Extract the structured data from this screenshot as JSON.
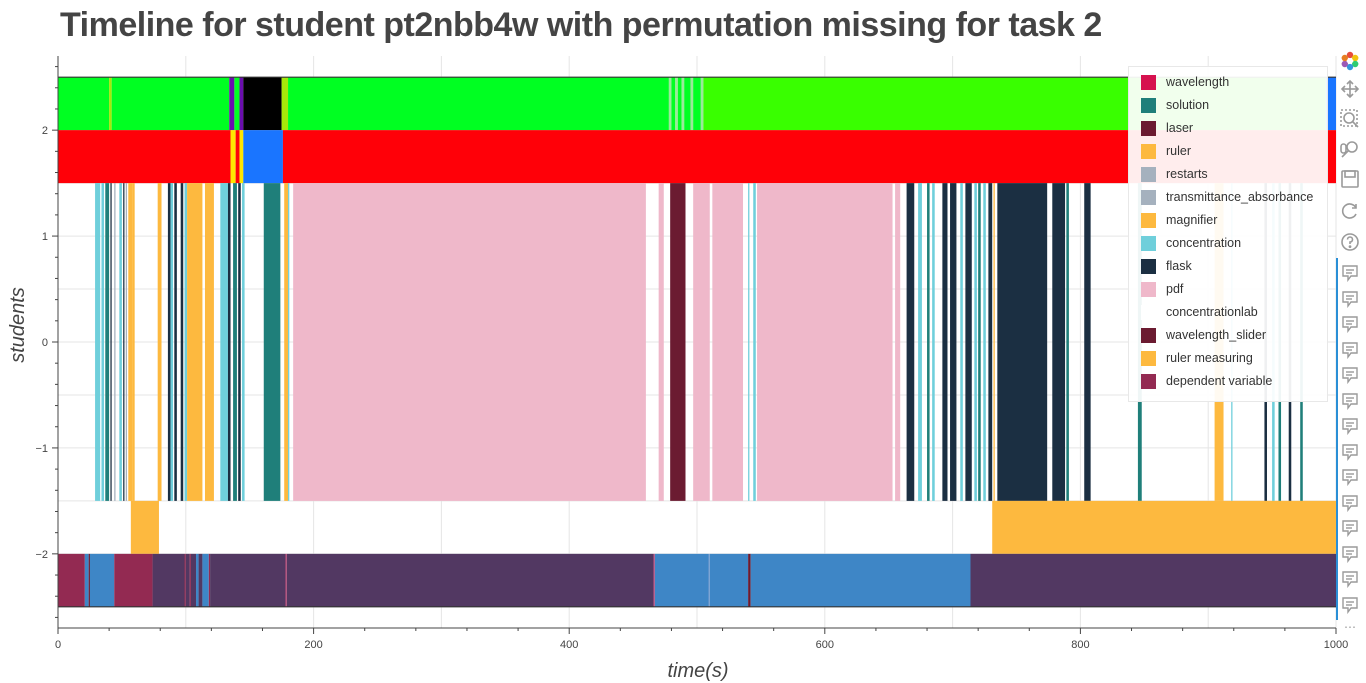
{
  "title": "Timeline for student pt2nbb4w with permutation missing for task 2",
  "chart_data": {
    "type": "timeline",
    "xlabel": "time(s)",
    "ylabel": "students",
    "xlim": [
      0,
      1000
    ],
    "ylim": [
      -2.7,
      2.7
    ],
    "x_ticks": [
      0,
      200,
      400,
      600,
      800,
      1000
    ],
    "y_ticks": [
      -2,
      -1,
      0,
      1,
      2
    ],
    "x_tick_labels": [
      "0",
      "200",
      "400",
      "600",
      "800",
      "1000"
    ],
    "y_tick_labels": [
      "−2",
      "−1",
      "0",
      "1",
      "2"
    ],
    "grid": true,
    "legend_position": "top-right",
    "legend": [
      {
        "label": "wavelength",
        "color": "#d6124f"
      },
      {
        "label": "solution",
        "color": "#1f7f7a"
      },
      {
        "label": "laser",
        "color": "#6b1b31"
      },
      {
        "label": "ruler",
        "color": "#fdb93f"
      },
      {
        "label": "restarts",
        "color": "#a5b1be"
      },
      {
        "label": "transmittance_absorbance",
        "color": "#a5b1be"
      },
      {
        "label": "magnifier",
        "color": "#fdb93f"
      },
      {
        "label": "concentration",
        "color": "#6fcfdb"
      },
      {
        "label": "flask",
        "color": "#1b2f42"
      },
      {
        "label": "pdf",
        "color": "#efb8ca"
      },
      {
        "label": "concentrationlab",
        "color": "#ffffff"
      },
      {
        "label": "wavelength_slider",
        "color": "#6b1b31"
      },
      {
        "label": "ruler measuring",
        "color": "#fdb93f"
      },
      {
        "label": "dependent variable",
        "color": "#932a52"
      }
    ],
    "rows": [
      {
        "y0": 2.0,
        "y1": 2.5,
        "segments": [
          {
            "x0": 0,
            "x1": 40,
            "color": "#00ff22"
          },
          {
            "x0": 40,
            "x1": 42,
            "color": "#a5e80a"
          },
          {
            "x0": 42,
            "x1": 134,
            "color": "#00ff22"
          },
          {
            "x0": 134,
            "x1": 138,
            "color": "#6a0dad"
          },
          {
            "x0": 138,
            "x1": 142,
            "color": "#00ff22"
          },
          {
            "x0": 142,
            "x1": 145,
            "color": "#6a0dad"
          },
          {
            "x0": 145,
            "x1": 175,
            "color": "#000000"
          },
          {
            "x0": 175,
            "x1": 180,
            "color": "#a5e80a"
          },
          {
            "x0": 180,
            "x1": 478,
            "color": "#00ff22"
          },
          {
            "x0": 478,
            "x1": 480,
            "color": "#9be89a"
          },
          {
            "x0": 480,
            "x1": 483,
            "color": "#00ff22"
          },
          {
            "x0": 483,
            "x1": 485,
            "color": "#9be89a"
          },
          {
            "x0": 485,
            "x1": 488,
            "color": "#00ff22"
          },
          {
            "x0": 488,
            "x1": 490,
            "color": "#9be89a"
          },
          {
            "x0": 490,
            "x1": 495,
            "color": "#00ff22"
          },
          {
            "x0": 495,
            "x1": 497,
            "color": "#9be89a"
          },
          {
            "x0": 497,
            "x1": 503,
            "color": "#00ff22"
          },
          {
            "x0": 503,
            "x1": 505,
            "color": "#9be89a"
          },
          {
            "x0": 505,
            "x1": 992,
            "color": "#39ff00"
          },
          {
            "x0": 992,
            "x1": 1000,
            "color": "#1a75ff"
          }
        ]
      },
      {
        "y0": 1.5,
        "y1": 2.0,
        "segments": [
          {
            "x0": 0,
            "x1": 135,
            "color": "#ff0008"
          },
          {
            "x0": 135,
            "x1": 139,
            "color": "#ffe600"
          },
          {
            "x0": 139,
            "x1": 142,
            "color": "#ff0008"
          },
          {
            "x0": 142,
            "x1": 145,
            "color": "#ffe600"
          },
          {
            "x0": 145,
            "x1": 176,
            "color": "#1a75ff"
          },
          {
            "x0": 176,
            "x1": 1000,
            "color": "#ff0008"
          }
        ]
      },
      {
        "y0": -1.5,
        "y1": 1.5,
        "segments": [
          {
            "x0": 29,
            "x1": 33,
            "color": "#6fcfdb"
          },
          {
            "x0": 34,
            "x1": 36,
            "color": "#6fcfdb"
          },
          {
            "x0": 37,
            "x1": 40,
            "color": "#1f7f7a"
          },
          {
            "x0": 41,
            "x1": 42,
            "color": "#1b2f42"
          },
          {
            "x0": 44,
            "x1": 45,
            "color": "#a5b1be"
          },
          {
            "x0": 48,
            "x1": 50,
            "color": "#6fcfdb"
          },
          {
            "x0": 51,
            "x1": 52,
            "color": "#1b2f42"
          },
          {
            "x0": 53,
            "x1": 54,
            "color": "#a5b1be"
          },
          {
            "x0": 55,
            "x1": 58,
            "color": "#fdb93f"
          },
          {
            "x0": 58,
            "x1": 60,
            "color": "#fdb93f"
          },
          {
            "x0": 78,
            "x1": 81,
            "color": "#fdb93f"
          },
          {
            "x0": 86,
            "x1": 88,
            "color": "#1b2f42"
          },
          {
            "x0": 88,
            "x1": 90,
            "color": "#6fcfdb"
          },
          {
            "x0": 91,
            "x1": 93,
            "color": "#1b2f42"
          },
          {
            "x0": 96,
            "x1": 98,
            "color": "#1b2f42"
          },
          {
            "x0": 99,
            "x1": 101,
            "color": "#6fcfdb"
          },
          {
            "x0": 101,
            "x1": 113,
            "color": "#fdb93f"
          },
          {
            "x0": 115,
            "x1": 122,
            "color": "#fdb93f"
          },
          {
            "x0": 127,
            "x1": 133,
            "color": "#6fcfdb"
          },
          {
            "x0": 133,
            "x1": 135,
            "color": "#1b2f42"
          },
          {
            "x0": 137,
            "x1": 140,
            "color": "#1f7f7a"
          },
          {
            "x0": 141,
            "x1": 143,
            "color": "#1b2f42"
          },
          {
            "x0": 144,
            "x1": 146,
            "color": "#6fcfdb"
          },
          {
            "x0": 161,
            "x1": 174,
            "color": "#1f7f7a"
          },
          {
            "x0": 177,
            "x1": 180,
            "color": "#fdb93f"
          },
          {
            "x0": 180,
            "x1": 181,
            "color": "#6fcfdb"
          },
          {
            "x0": 184,
            "x1": 460,
            "color": "#efb8ca"
          },
          {
            "x0": 470,
            "x1": 474,
            "color": "#efb8ca"
          },
          {
            "x0": 479,
            "x1": 491,
            "color": "#6b1b31"
          },
          {
            "x0": 497,
            "x1": 510,
            "color": "#efb8ca"
          },
          {
            "x0": 512,
            "x1": 536,
            "color": "#efb8ca"
          },
          {
            "x0": 540,
            "x1": 541,
            "color": "#6fcfdb"
          },
          {
            "x0": 544,
            "x1": 546,
            "color": "#6fcfdb"
          },
          {
            "x0": 547,
            "x1": 653,
            "color": "#efb8ca"
          },
          {
            "x0": 655,
            "x1": 659,
            "color": "#efb8ca"
          },
          {
            "x0": 664,
            "x1": 670,
            "color": "#1b2f42"
          },
          {
            "x0": 673,
            "x1": 676,
            "color": "#6fcfdb"
          },
          {
            "x0": 680,
            "x1": 682,
            "color": "#1f7f7a"
          },
          {
            "x0": 684,
            "x1": 686,
            "color": "#6fcfdb"
          },
          {
            "x0": 692,
            "x1": 696,
            "color": "#1b2f42"
          },
          {
            "x0": 698,
            "x1": 703,
            "color": "#1b2f42"
          },
          {
            "x0": 706,
            "x1": 708,
            "color": "#6fcfdb"
          },
          {
            "x0": 710,
            "x1": 715,
            "color": "#1b2f42"
          },
          {
            "x0": 717,
            "x1": 719,
            "color": "#6fcfdb"
          },
          {
            "x0": 720,
            "x1": 722,
            "color": "#1f7f7a"
          },
          {
            "x0": 724,
            "x1": 726,
            "color": "#6fcfdb"
          },
          {
            "x0": 728,
            "x1": 731,
            "color": "#1b2f42"
          },
          {
            "x0": 732,
            "x1": 733,
            "color": "#fdb93f"
          },
          {
            "x0": 735,
            "x1": 774,
            "color": "#1b2f42"
          },
          {
            "x0": 778,
            "x1": 788,
            "color": "#1b2f42"
          },
          {
            "x0": 789,
            "x1": 791,
            "color": "#1f7f7a"
          },
          {
            "x0": 803,
            "x1": 808,
            "color": "#1b2f42"
          },
          {
            "x0": 845,
            "x1": 848,
            "color": "#1f7f7a"
          },
          {
            "x0": 905,
            "x1": 912,
            "color": "#fdb93f"
          },
          {
            "x0": 918,
            "x1": 919,
            "color": "#6fcfdb"
          },
          {
            "x0": 944,
            "x1": 946,
            "color": "#1b2f42"
          },
          {
            "x0": 950,
            "x1": 952,
            "color": "#6fcfdb"
          },
          {
            "x0": 955,
            "x1": 957,
            "color": "#1f7f7a"
          },
          {
            "x0": 963,
            "x1": 965,
            "color": "#1b2f42"
          },
          {
            "x0": 972,
            "x1": 974,
            "color": "#1f7f7a"
          }
        ]
      },
      {
        "y0": -2.0,
        "y1": -1.5,
        "segments": [
          {
            "x0": 57,
            "x1": 79,
            "color": "#fdb93f"
          },
          {
            "x0": 731,
            "x1": 1000,
            "color": "#fdb93f"
          }
        ]
      },
      {
        "y0": -2.5,
        "y1": -2.0,
        "segments": [
          {
            "x0": 0,
            "x1": 21,
            "color": "#932a52"
          },
          {
            "x0": 21,
            "x1": 24,
            "color": "#3e86c6"
          },
          {
            "x0": 24,
            "x1": 25,
            "color": "#6b1b31"
          },
          {
            "x0": 25,
            "x1": 44,
            "color": "#3e86c6"
          },
          {
            "x0": 44,
            "x1": 74,
            "color": "#932a52"
          },
          {
            "x0": 74,
            "x1": 99,
            "color": "#523862"
          },
          {
            "x0": 99,
            "x1": 100,
            "color": "#932a52"
          },
          {
            "x0": 100,
            "x1": 103,
            "color": "#523862"
          },
          {
            "x0": 103,
            "x1": 104,
            "color": "#932a52"
          },
          {
            "x0": 104,
            "x1": 108,
            "color": "#523862"
          },
          {
            "x0": 108,
            "x1": 110,
            "color": "#3e86c6"
          },
          {
            "x0": 110,
            "x1": 113,
            "color": "#523862"
          },
          {
            "x0": 113,
            "x1": 118,
            "color": "#3e86c6"
          },
          {
            "x0": 118,
            "x1": 119,
            "color": "#932a52"
          },
          {
            "x0": 119,
            "x1": 178,
            "color": "#523862"
          },
          {
            "x0": 178,
            "x1": 179,
            "color": "#c44a7a"
          },
          {
            "x0": 179,
            "x1": 466,
            "color": "#523862"
          },
          {
            "x0": 466,
            "x1": 467,
            "color": "#c44a7a"
          },
          {
            "x0": 467,
            "x1": 509,
            "color": "#3e86c6"
          },
          {
            "x0": 509,
            "x1": 510,
            "color": "#7a9fd0"
          },
          {
            "x0": 510,
            "x1": 540,
            "color": "#3e86c6"
          },
          {
            "x0": 540,
            "x1": 542,
            "color": "#6b1b31"
          },
          {
            "x0": 542,
            "x1": 714,
            "color": "#3e86c6"
          },
          {
            "x0": 714,
            "x1": 1000,
            "color": "#523862"
          }
        ]
      }
    ],
    "row_borders": [
      2.5,
      -2.5
    ]
  },
  "toolbar": {
    "icons": [
      "bokeh-logo-icon",
      "pan-icon",
      "box-zoom-icon",
      "wheel-zoom-icon",
      "save-icon",
      "reset-icon",
      "help-icon",
      "hover-icon",
      "more-icon"
    ],
    "more_label": "⋯"
  }
}
